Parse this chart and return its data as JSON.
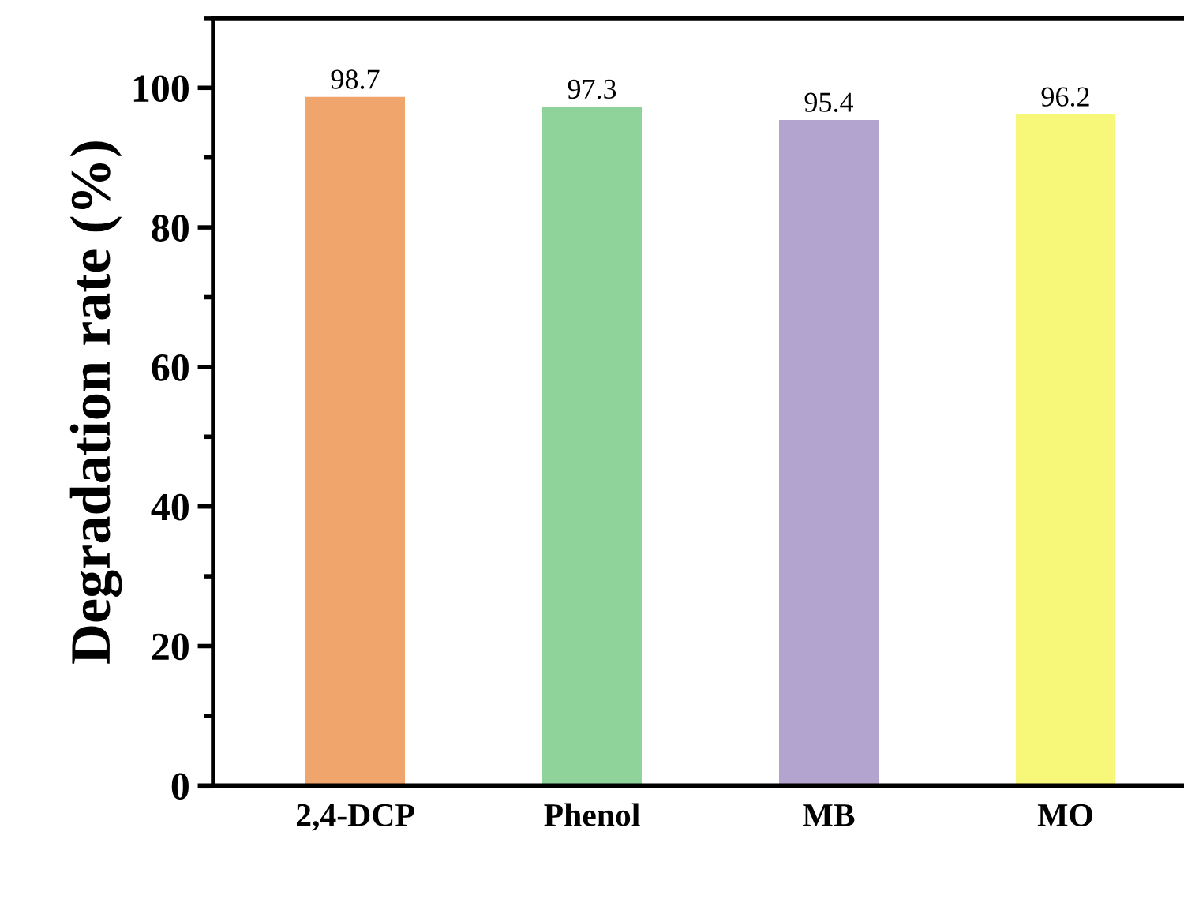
{
  "chart_data": {
    "type": "bar",
    "ylabel": "Degradation rate (%)",
    "categories": [
      "2,4-DCP",
      "Phenol",
      "MB",
      "MO"
    ],
    "values": [
      98.7,
      97.3,
      95.4,
      96.2
    ],
    "colors": [
      "#f0a56c",
      "#8fd39a",
      "#b3a4cf",
      "#f7f77a"
    ],
    "ylim": [
      0,
      110
    ],
    "yticks": [
      0,
      20,
      40,
      60,
      80,
      100
    ],
    "data_labels": true,
    "grid": false,
    "legend": false
  }
}
